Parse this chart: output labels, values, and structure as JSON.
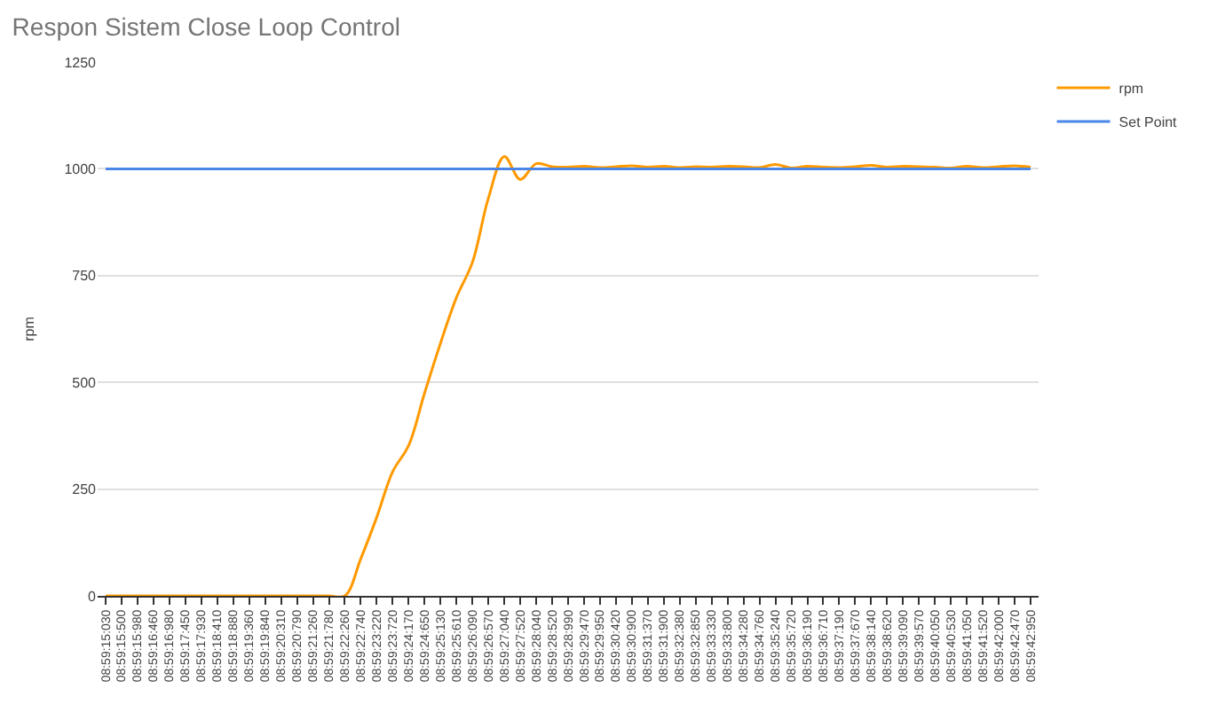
{
  "chart_data": {
    "type": "line",
    "title": "Respon Sistem Close Loop Control",
    "ylabel": "rpm",
    "categories": [
      "08:59:15:030",
      "08:59:15:500",
      "08:59:15:980",
      "08:59:16:460",
      "08:59:16:980",
      "08:59:17:450",
      "08:59:17:930",
      "08:59:18:410",
      "08:59:18:880",
      "08:59:19:360",
      "08:59:19:840",
      "08:59:20:310",
      "08:59:20:790",
      "08:59:21:260",
      "08:59:21:780",
      "08:59:22:260",
      "08:59:22:740",
      "08:59:23:220",
      "08:59:23:720",
      "08:59:24:170",
      "08:59:24:650",
      "08:59:25:130",
      "08:59:25:610",
      "08:59:26:090",
      "08:59:26:570",
      "08:59:27:040",
      "08:59:27:520",
      "08:59:28:040",
      "08:59:28:520",
      "08:59:28:990",
      "08:59:29:470",
      "08:59:29:950",
      "08:59:30:420",
      "08:59:30:900",
      "08:59:31:370",
      "08:59:31:900",
      "08:59:32:380",
      "08:59:32:850",
      "08:59:33:330",
      "08:59:33:800",
      "08:59:34:280",
      "08:59:34:760",
      "08:59:35:240",
      "08:59:35:720",
      "08:59:36:190",
      "08:59:36:710",
      "08:59:37:190",
      "08:59:37:670",
      "08:59:38:140",
      "08:59:38:620",
      "08:59:39:090",
      "08:59:39:570",
      "08:59:40:050",
      "08:59:40:530",
      "08:59:41:050",
      "08:59:41:520",
      "08:59:42:000",
      "08:59:42:470",
      "08:59:42:950"
    ],
    "series": [
      {
        "name": "rpm",
        "color": "#ff9900",
        "values": [
          0,
          0,
          0,
          0,
          0,
          0,
          0,
          0,
          0,
          0,
          0,
          0,
          0,
          0,
          0,
          0,
          87,
          184,
          291,
          352,
          475,
          592,
          699,
          781,
          931,
          1029,
          975,
          1012,
          1005,
          1004,
          1006,
          1003,
          1005,
          1007,
          1004,
          1006,
          1003,
          1005,
          1004,
          1006,
          1005,
          1003,
          1010,
          1002,
          1006,
          1004,
          1003,
          1005,
          1008,
          1004,
          1006,
          1005,
          1004,
          1002,
          1006,
          1003,
          1005,
          1007,
          1004
        ]
      },
      {
        "name": "Set Point",
        "color": "#4a86e8",
        "values": [
          1000,
          1000,
          1000,
          1000,
          1000,
          1000,
          1000,
          1000,
          1000,
          1000,
          1000,
          1000,
          1000,
          1000,
          1000,
          1000,
          1000,
          1000,
          1000,
          1000,
          1000,
          1000,
          1000,
          1000,
          1000,
          1000,
          1000,
          1000,
          1000,
          1000,
          1000,
          1000,
          1000,
          1000,
          1000,
          1000,
          1000,
          1000,
          1000,
          1000,
          1000,
          1000,
          1000,
          1000,
          1000,
          1000,
          1000,
          1000,
          1000,
          1000,
          1000,
          1000,
          1000,
          1000,
          1000,
          1000,
          1000,
          1000,
          1000
        ]
      }
    ],
    "ylim": [
      0,
      1250
    ],
    "yticks": [
      0,
      250,
      500,
      750,
      1000,
      1250
    ],
    "grid": "y",
    "legend": "top right"
  }
}
